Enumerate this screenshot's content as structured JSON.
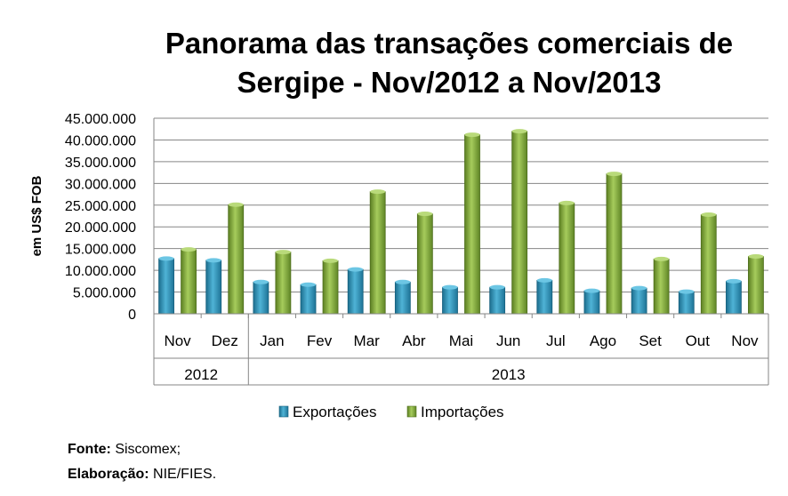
{
  "chart_data": {
    "type": "bar",
    "title_line1": "Panorama das transações comerciais de",
    "title_line2": "Sergipe - Nov/2012 a Nov/2013",
    "ylabel": "em US$ FOB",
    "ylim": [
      0,
      45000000
    ],
    "yticks": [
      "0",
      "5.000.000",
      "10.000.000",
      "15.000.000",
      "20.000.000",
      "25.000.000",
      "30.000.000",
      "35.000.000",
      "40.000.000",
      "45.000.000"
    ],
    "grid": true,
    "categories": [
      "Nov",
      "Dez",
      "Jan",
      "Fev",
      "Mar",
      "Abr",
      "Mai",
      "Jun",
      "Jul",
      "Ago",
      "Set",
      "Out",
      "Nov"
    ],
    "year_groups": [
      {
        "label": "2012",
        "count": 2
      },
      {
        "label": "2013",
        "count": 11
      }
    ],
    "series": [
      {
        "name": "Exportações",
        "color": "#2E8FB4",
        "values": [
          12700000,
          12300000,
          7300000,
          6700000,
          10200000,
          7300000,
          6100000,
          6100000,
          7700000,
          5300000,
          5900000,
          5100000,
          7500000
        ]
      },
      {
        "name": "Importações",
        "color": "#7FA63A",
        "values": [
          14800000,
          25100000,
          14200000,
          12200000,
          28100000,
          23000000,
          41200000,
          42000000,
          25500000,
          32200000,
          12600000,
          22800000,
          13200000
        ]
      }
    ],
    "legend_position": "bottom"
  },
  "footer": {
    "fonte_label": "Fonte:",
    "fonte_value": "Siscomex;",
    "elab_label": "Elaboração:",
    "elab_value": "NIE/FIES."
  }
}
